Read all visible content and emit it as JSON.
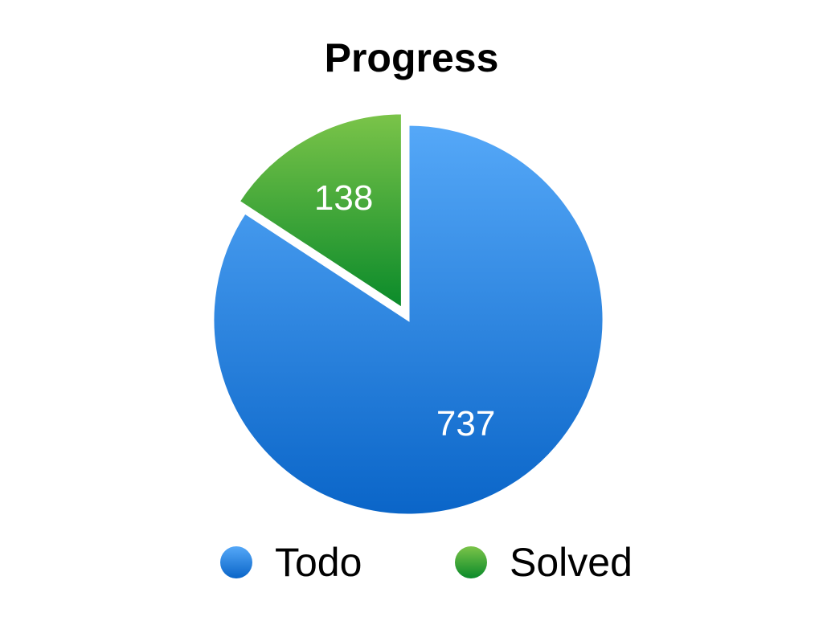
{
  "chart_data": {
    "type": "pie",
    "title": "Progress",
    "slices": [
      {
        "label": "Todo",
        "value": 737,
        "color": "#3a8ee6",
        "gradient": [
          "#55a8f8",
          "#0a65c8"
        ]
      },
      {
        "label": "Solved",
        "value": 138,
        "color": "#2ea02e",
        "gradient": [
          "#7bc449",
          "#0a8a2a"
        ]
      }
    ],
    "exploded_slice": "Solved",
    "legend_position": "bottom"
  }
}
